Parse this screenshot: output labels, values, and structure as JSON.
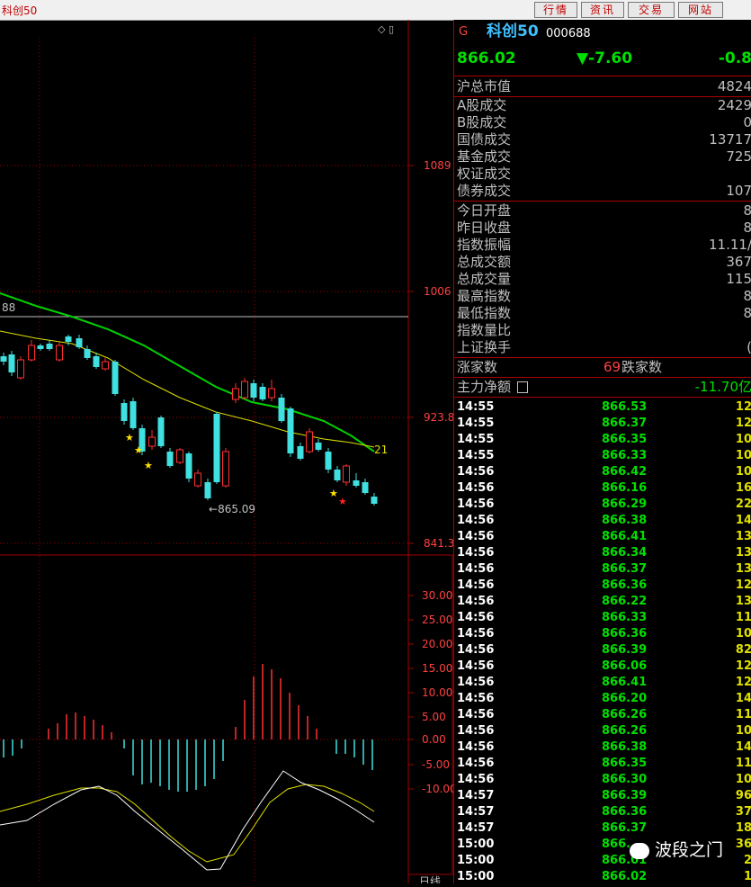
{
  "window": {
    "title": "科创50"
  },
  "toolbar": {
    "buttons": [
      "行情",
      "资讯",
      "交易",
      "网站"
    ]
  },
  "chart": {
    "price_ticks": [
      "1089",
      "1006",
      "923.8",
      "841.3"
    ],
    "macd_ticks": [
      "30.00",
      "25.00",
      "20.00",
      "15.00",
      "10.00",
      "5.00",
      "0.00",
      "-5.00",
      "-10.00"
    ],
    "low_label": "865.09",
    "hline_label": "88",
    "ma_label": "21",
    "bottom_label": "日线",
    "colors": {
      "up": "#ff3030",
      "down": "#40e0e0",
      "ma_green": "#00d000",
      "ma_yellow": "#e0e000",
      "grid": "#a00000"
    }
  },
  "quote": {
    "market_flag": "G",
    "name": "科创50",
    "code": "000688",
    "price": "866.02",
    "change": "▼-7.60",
    "change_pct": "-0.8"
  },
  "stats1": [
    {
      "label": "沪总市值",
      "value": "4824"
    }
  ],
  "stats2": [
    {
      "label": "A股成交",
      "value": "2429"
    },
    {
      "label": "B股成交",
      "value": "0"
    },
    {
      "label": "国债成交",
      "value": "13717"
    },
    {
      "label": "基金成交",
      "value": "725"
    },
    {
      "label": "权证成交",
      "value": ""
    },
    {
      "label": "债券成交",
      "value": "107"
    }
  ],
  "stats3": [
    {
      "label": "今日开盘",
      "value": "8"
    },
    {
      "label": "昨日收盘",
      "value": "8"
    },
    {
      "label": "指数振幅",
      "value": "11.11/"
    },
    {
      "label": "总成交额",
      "value": "367"
    },
    {
      "label": "总成交量",
      "value": "115"
    },
    {
      "label": "最高指数",
      "value": "8"
    },
    {
      "label": "最低指数",
      "value": "8"
    },
    {
      "label": "指数量比",
      "value": ""
    },
    {
      "label": "上证换手",
      "value": "("
    }
  ],
  "breadth": {
    "up_label": "涨家数",
    "up_value": "69",
    "down_label": "跌家数"
  },
  "flow": {
    "label": "主力净额",
    "value": "-11.70亿"
  },
  "ticks": [
    {
      "t": "14:55",
      "p": "866.53",
      "v": "12"
    },
    {
      "t": "14:55",
      "p": "866.37",
      "v": "12"
    },
    {
      "t": "14:55",
      "p": "866.35",
      "v": "10"
    },
    {
      "t": "14:55",
      "p": "866.33",
      "v": "10"
    },
    {
      "t": "14:56",
      "p": "866.42",
      "v": "10"
    },
    {
      "t": "14:56",
      "p": "866.16",
      "v": "16"
    },
    {
      "t": "14:56",
      "p": "866.29",
      "v": "22"
    },
    {
      "t": "14:56",
      "p": "866.38",
      "v": "14"
    },
    {
      "t": "14:56",
      "p": "866.41",
      "v": "13"
    },
    {
      "t": "14:56",
      "p": "866.34",
      "v": "13"
    },
    {
      "t": "14:56",
      "p": "866.37",
      "v": "13"
    },
    {
      "t": "14:56",
      "p": "866.36",
      "v": "12"
    },
    {
      "t": "14:56",
      "p": "866.22",
      "v": "13"
    },
    {
      "t": "14:56",
      "p": "866.33",
      "v": "11"
    },
    {
      "t": "14:56",
      "p": "866.36",
      "v": "10"
    },
    {
      "t": "14:56",
      "p": "866.39",
      "v": "82"
    },
    {
      "t": "14:56",
      "p": "866.06",
      "v": "12"
    },
    {
      "t": "14:56",
      "p": "866.41",
      "v": "12"
    },
    {
      "t": "14:56",
      "p": "866.20",
      "v": "14"
    },
    {
      "t": "14:56",
      "p": "866.26",
      "v": "11"
    },
    {
      "t": "14:56",
      "p": "866.26",
      "v": "10"
    },
    {
      "t": "14:56",
      "p": "866.38",
      "v": "14"
    },
    {
      "t": "14:56",
      "p": "866.35",
      "v": "11"
    },
    {
      "t": "14:56",
      "p": "866.30",
      "v": "10"
    },
    {
      "t": "14:57",
      "p": "866.39",
      "v": "96"
    },
    {
      "t": "14:57",
      "p": "866.36",
      "v": "37"
    },
    {
      "t": "14:57",
      "p": "866.37",
      "v": "18"
    },
    {
      "t": "15:00",
      "p": "866.",
      "v": "36"
    },
    {
      "t": "15:00",
      "p": "866.01",
      "v": "2"
    },
    {
      "t": "15:00",
      "p": "866.02",
      "v": "1"
    }
  ],
  "watermark": "波段之门"
}
